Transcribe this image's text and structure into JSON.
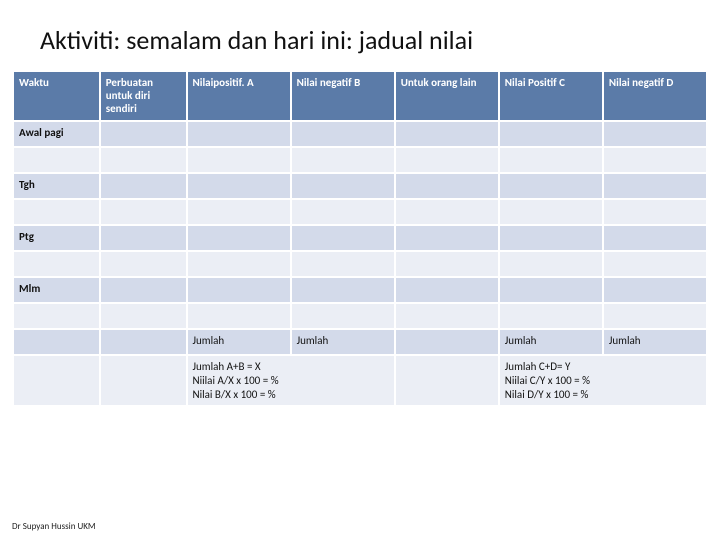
{
  "title": "Aktiviti: semalam dan hari ini: jadual nilai",
  "columns": [
    "Waktu",
    "Perbuatan untuk diri sendiri",
    "Nilaipositif. A",
    "Nilai negatif B",
    "Untuk orang lain",
    "Nilai Positif C",
    "Nilai negatif D"
  ],
  "row_labels": {
    "r1": "Awal pagi",
    "r3": "Tgh",
    "r5": "Ptg",
    "r7": "Mlm"
  },
  "totals": {
    "label": "Jumlah",
    "calc_left": "Jumlah A+B = X\nNiilai A/X  x 100 = %\nNilai B/X  x 100 = %",
    "calc_right": "Jumlah C+D= Y\nNiilai C/Y  x 100 = %\nNilai D/Y  x 100 = %"
  },
  "footer": "Dr Supyan Hussin UKM",
  "style": {
    "header_bg": "#5b7ba8",
    "header_fg": "#ffffff",
    "band_a_bg": "#d3daea",
    "band_b_bg": "#ebeef5",
    "border_color": "#ffffff",
    "title_color": "#111111",
    "title_fontsize": 26,
    "cell_fontsize": 11,
    "footer_fontsize": 9
  }
}
